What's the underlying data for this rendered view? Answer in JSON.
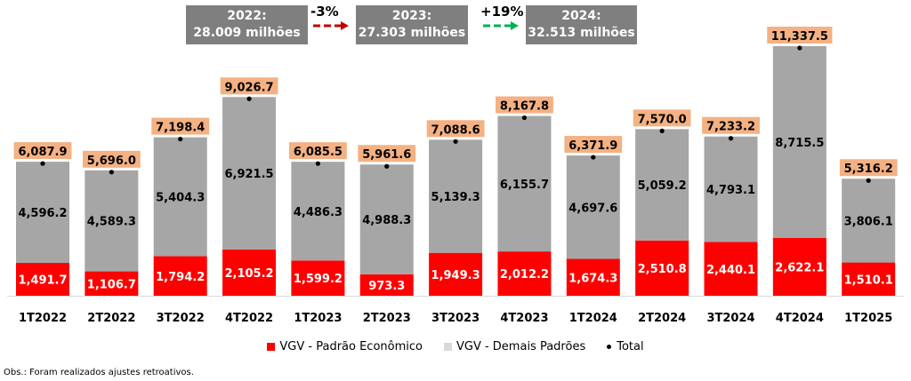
{
  "summary": {
    "boxes": [
      {
        "year": "2022:",
        "value": "28.009 milhões"
      },
      {
        "year": "2023:",
        "value": "27.303 milhões"
      },
      {
        "year": "2024:",
        "value": "32.513 milhões"
      }
    ],
    "changes": [
      {
        "label": "-3%",
        "color": "#c00000"
      },
      {
        "label": "+19%",
        "color": "#00b050"
      }
    ]
  },
  "chart_data": {
    "type": "bar",
    "stacked": true,
    "title": "",
    "xlabel": "",
    "ylabel": "",
    "categories": [
      "1T2022",
      "2T2022",
      "3T2022",
      "4T2022",
      "1T2023",
      "2T2023",
      "3T2023",
      "4T2023",
      "1T2024",
      "2T2024",
      "3T2024",
      "4T2024",
      "1T2025"
    ],
    "series": [
      {
        "name": "VGV - Padrão Econômico",
        "color": "#ff0000",
        "label_color": "#ffffff",
        "values": [
          1491.7,
          1106.7,
          1794.2,
          2105.2,
          1599.2,
          973.3,
          1949.3,
          2012.2,
          1674.3,
          2510.8,
          2440.1,
          2622.1,
          1510.1
        ]
      },
      {
        "name": "VGV - Demais Padrões",
        "color": "#a6a6a6",
        "label_color": "#000000",
        "values": [
          4596.2,
          4589.3,
          5404.3,
          6921.5,
          4486.3,
          4988.3,
          5139.3,
          6155.7,
          4697.6,
          5059.2,
          4793.1,
          8715.5,
          3806.1
        ]
      },
      {
        "name": "Total",
        "type": "marker",
        "color": "#000000",
        "label_bg": "#f4b183",
        "values": [
          6087.9,
          5696.0,
          7198.4,
          9026.7,
          6085.5,
          5961.6,
          7088.6,
          8167.8,
          6371.9,
          7570.0,
          7233.2,
          11337.5,
          5316.2
        ]
      }
    ],
    "value_labels": {
      "econ": [
        "1,491.7",
        "1,106.7",
        "1,794.2",
        "2,105.2",
        "1,599.2",
        "973.3",
        "1,949.3",
        "2,012.2",
        "1,674.3",
        "2,510.8",
        "2,440.1",
        "2,622.1",
        "1,510.1"
      ],
      "demais": [
        "4,596.2",
        "4,589.3",
        "5,404.3",
        "6,921.5",
        "4,486.3",
        "4,988.3",
        "5,139.3",
        "6,155.7",
        "4,697.6",
        "5,059.2",
        "4,793.1",
        "8,715.5",
        "3,806.1"
      ],
      "total": [
        "6,087.9",
        "5,696.0",
        "7,198.4",
        "9,026.7",
        "6,085.5",
        "5,961.6",
        "7,088.6",
        "8,167.8",
        "6,371.9",
        "7,570.0",
        "7,233.2",
        "11,337.5",
        "5,316.2"
      ]
    },
    "ylim": [
      0,
      11337.5
    ],
    "grid": false,
    "legend": "bottom-center"
  },
  "legend": {
    "items": [
      {
        "label": "VGV - Padrão Econômico",
        "color": "#ff0000"
      },
      {
        "label": "VGV - Demais Padrões",
        "color": "#d9d9d9"
      },
      {
        "label": "Total"
      }
    ]
  },
  "note": "Obs.: Foram realizados ajustes retroativos."
}
